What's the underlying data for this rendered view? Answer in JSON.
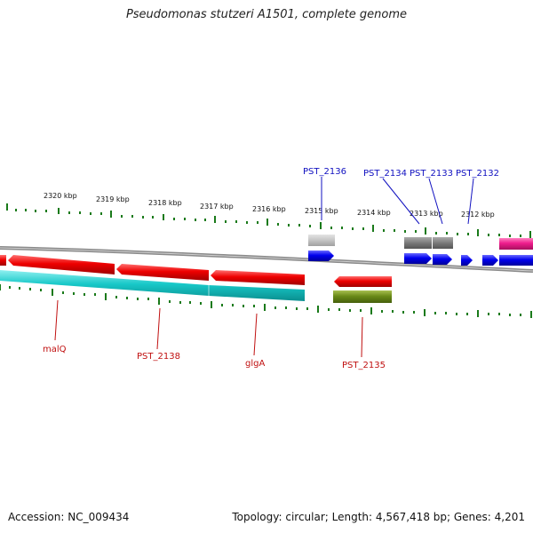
{
  "title": "Pseudomonas stutzeri A1501, complete genome",
  "footer": {
    "accession": "Accession: NC_009434",
    "summary": "Topology: circular; Length: 4,567,418 bp; Genes: 4,201"
  },
  "scale_labels": [
    "2320 kbp",
    "2319 kbp",
    "2318 kbp",
    "2317 kbp",
    "2316 kbp",
    "2315 kbp",
    "2314 kbp",
    "2313 kbp",
    "2312 kbp"
  ],
  "genes_top": [
    "PST_2136",
    "PST_2134",
    "PST_2133",
    "PST_2132"
  ],
  "genes_bottom": [
    "malQ",
    "PST_2138",
    "glgA",
    "PST_2135"
  ],
  "colors": {
    "forward_cds": "#0000ee",
    "reverse_cds": "#ee0000",
    "reverse_track_2": "#18c8c8",
    "gene_grey": "#888888",
    "rna_pink": "#ee1c8c",
    "olive": "#6a8a18",
    "tick_green": "#1a7a1a",
    "backbone": "#8a8a8a"
  }
}
